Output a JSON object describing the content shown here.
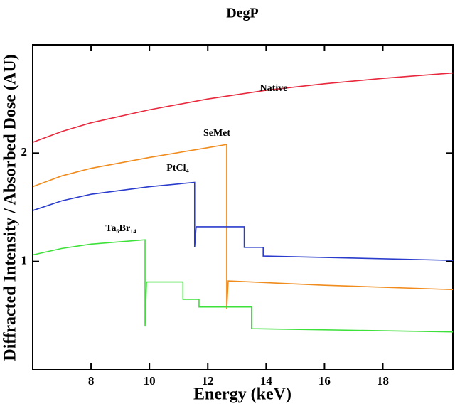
{
  "chart_data": {
    "type": "line",
    "title": "DegP",
    "x_label": "Energy (keV)",
    "y_label": "Diffracted Intensity / Absorbed Dose (AU)",
    "xlim": [
      6,
      20.4
    ],
    "ylim": [
      0,
      3
    ],
    "xticks": [
      8,
      10,
      12,
      14,
      16,
      18
    ],
    "yticks": [
      1,
      2
    ],
    "series": [
      {
        "name": "Native",
        "color": "#e8283c",
        "x": [
          6,
          7,
          8,
          10,
          12,
          14,
          16,
          18,
          20.4
        ],
        "values": [
          2.1,
          2.2,
          2.28,
          2.4,
          2.5,
          2.58,
          2.64,
          2.69,
          2.74
        ]
      },
      {
        "name": "SeMet",
        "color": "#f08c1e",
        "x": [
          6,
          7,
          8,
          10,
          12,
          12.65,
          12.65,
          12.7,
          16,
          20.4
        ],
        "values": [
          1.69,
          1.79,
          1.86,
          1.96,
          2.05,
          2.08,
          0.56,
          0.82,
          0.78,
          0.74
        ]
      },
      {
        "name": "PtCl₄",
        "color": "#2a3ccc",
        "x": [
          6,
          7,
          8,
          10,
          11.55,
          11.55,
          11.6,
          13.25,
          13.25,
          13.9,
          13.9,
          20.4
        ],
        "values": [
          1.47,
          1.56,
          1.62,
          1.69,
          1.73,
          1.13,
          1.32,
          1.32,
          1.13,
          1.13,
          1.05,
          1.01
        ]
      },
      {
        "name": "Ta₆Br₁₄",
        "color": "#3ee03a",
        "x": [
          6,
          7,
          8,
          9.85,
          9.85,
          9.9,
          11.15,
          11.15,
          11.7,
          11.7,
          13.5,
          13.5,
          20.4
        ],
        "values": [
          1.06,
          1.12,
          1.16,
          1.2,
          0.4,
          0.81,
          0.81,
          0.65,
          0.65,
          0.58,
          0.58,
          0.38,
          0.35
        ]
      }
    ]
  }
}
